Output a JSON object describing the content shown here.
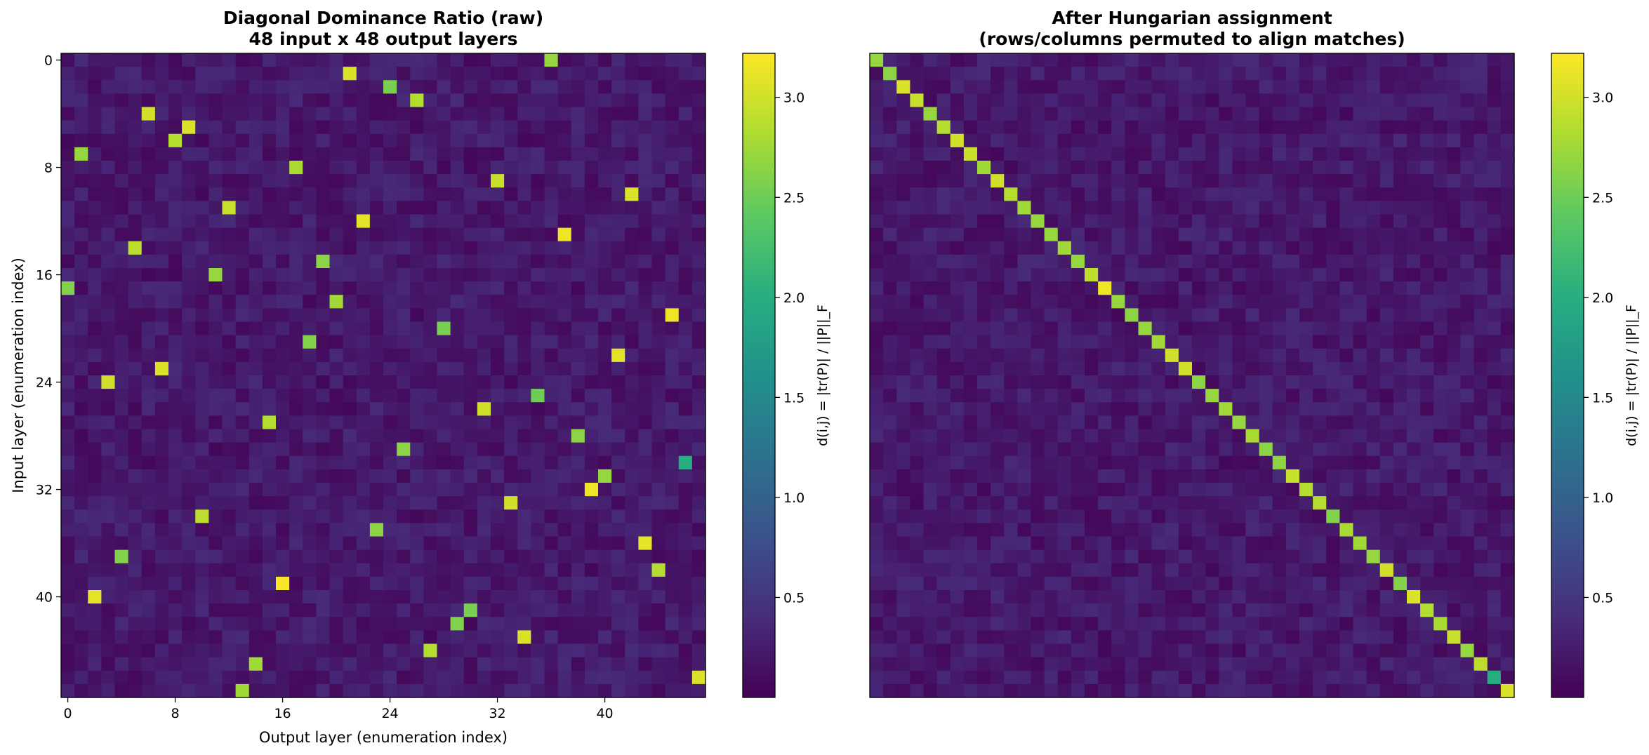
{
  "chart_data": [
    {
      "type": "heatmap",
      "title": "Diagonal Dominance Ratio (raw)",
      "subtitle": "48 input x 48 output layers",
      "xlabel": "Output layer (enumeration index)",
      "ylabel": "Input layer (enumeration index)",
      "rows": 48,
      "cols": 48,
      "x_ticks": [
        "0",
        "8",
        "16",
        "24",
        "32",
        "40"
      ],
      "y_ticks": [
        "0",
        "8",
        "16",
        "24",
        "32",
        "40"
      ],
      "colormap": "viridis",
      "value_range": [
        0.0,
        3.22
      ],
      "background_level": 0.25,
      "highlighted_cells": [
        {
          "row": 0,
          "col": 36,
          "value": 2.7
        },
        {
          "row": 1,
          "col": 21,
          "value": 3.05
        },
        {
          "row": 2,
          "col": 24,
          "value": 2.55
        },
        {
          "row": 3,
          "col": 26,
          "value": 2.85
        },
        {
          "row": 4,
          "col": 6,
          "value": 3.0
        },
        {
          "row": 5,
          "col": 9,
          "value": 3.05
        },
        {
          "row": 6,
          "col": 8,
          "value": 2.85
        },
        {
          "row": 7,
          "col": 1,
          "value": 2.7
        },
        {
          "row": 8,
          "col": 17,
          "value": 2.8
        },
        {
          "row": 9,
          "col": 32,
          "value": 2.95
        },
        {
          "row": 10,
          "col": 42,
          "value": 3.05
        },
        {
          "row": 11,
          "col": 12,
          "value": 2.95
        },
        {
          "row": 12,
          "col": 22,
          "value": 3.1
        },
        {
          "row": 13,
          "col": 37,
          "value": 3.15
        },
        {
          "row": 14,
          "col": 5,
          "value": 2.9
        },
        {
          "row": 15,
          "col": 19,
          "value": 2.65
        },
        {
          "row": 16,
          "col": 11,
          "value": 2.7
        },
        {
          "row": 17,
          "col": 0,
          "value": 2.6
        },
        {
          "row": 18,
          "col": 20,
          "value": 2.75
        },
        {
          "row": 19,
          "col": 45,
          "value": 3.15
        },
        {
          "row": 20,
          "col": 28,
          "value": 2.55
        },
        {
          "row": 21,
          "col": 18,
          "value": 2.6
        },
        {
          "row": 22,
          "col": 41,
          "value": 3.1
        },
        {
          "row": 23,
          "col": 7,
          "value": 3.05
        },
        {
          "row": 24,
          "col": 3,
          "value": 3.0
        },
        {
          "row": 25,
          "col": 35,
          "value": 2.5
        },
        {
          "row": 26,
          "col": 31,
          "value": 3.0
        },
        {
          "row": 27,
          "col": 15,
          "value": 2.85
        },
        {
          "row": 28,
          "col": 38,
          "value": 2.65
        },
        {
          "row": 29,
          "col": 25,
          "value": 2.65
        },
        {
          "row": 30,
          "col": 46,
          "value": 2.0
        },
        {
          "row": 31,
          "col": 40,
          "value": 2.7
        },
        {
          "row": 32,
          "col": 39,
          "value": 3.15
        },
        {
          "row": 33,
          "col": 33,
          "value": 3.0
        },
        {
          "row": 34,
          "col": 10,
          "value": 2.9
        },
        {
          "row": 35,
          "col": 23,
          "value": 2.65
        },
        {
          "row": 36,
          "col": 43,
          "value": 3.1
        },
        {
          "row": 37,
          "col": 4,
          "value": 2.6
        },
        {
          "row": 38,
          "col": 44,
          "value": 2.85
        },
        {
          "row": 39,
          "col": 16,
          "value": 3.2
        },
        {
          "row": 40,
          "col": 2,
          "value": 3.1
        },
        {
          "row": 41,
          "col": 30,
          "value": 2.55
        },
        {
          "row": 42,
          "col": 29,
          "value": 2.6
        },
        {
          "row": 43,
          "col": 34,
          "value": 3.05
        },
        {
          "row": 44,
          "col": 27,
          "value": 2.85
        },
        {
          "row": 45,
          "col": 14,
          "value": 2.75
        },
        {
          "row": 46,
          "col": 47,
          "value": 3.05
        },
        {
          "row": 47,
          "col": 13,
          "value": 2.75
        }
      ],
      "colorbar": {
        "label": "d(i,j) = |tr(P)| / ||P||_F",
        "ticks": [
          "0.5",
          "1.0",
          "1.5",
          "2.0",
          "2.5",
          "3.0"
        ],
        "tick_values": [
          0.5,
          1.0,
          1.5,
          2.0,
          2.5,
          3.0
        ],
        "range": [
          0.0,
          3.22
        ]
      }
    },
    {
      "type": "heatmap",
      "title": "After Hungarian assignment",
      "subtitle": "(rows/columns permuted to align matches)",
      "rows": 48,
      "cols": 48,
      "colormap": "viridis",
      "value_range": [
        0.0,
        3.22
      ],
      "background_level": 0.25,
      "diagonal_values": [
        2.7,
        2.65,
        3.05,
        2.95,
        2.7,
        2.85,
        3.0,
        2.95,
        2.75,
        3.0,
        2.85,
        2.75,
        2.7,
        2.7,
        2.75,
        2.7,
        2.9,
        3.15,
        2.7,
        2.65,
        2.7,
        2.75,
        3.0,
        3.0,
        2.65,
        2.7,
        2.75,
        2.7,
        2.8,
        2.65,
        2.65,
        2.95,
        2.85,
        2.85,
        2.6,
        2.8,
        2.75,
        2.7,
        3.0,
        2.6,
        3.05,
        2.85,
        2.8,
        2.95,
        2.7,
        2.9,
        2.0,
        3.05
      ],
      "colorbar": {
        "label": "d(i,j) = |tr(P)| / ||P||_F",
        "ticks": [
          "0.5",
          "1.0",
          "1.5",
          "2.0",
          "2.5",
          "3.0"
        ],
        "tick_values": [
          0.5,
          1.0,
          1.5,
          2.0,
          2.5,
          3.0
        ],
        "range": [
          0.0,
          3.22
        ]
      }
    }
  ]
}
